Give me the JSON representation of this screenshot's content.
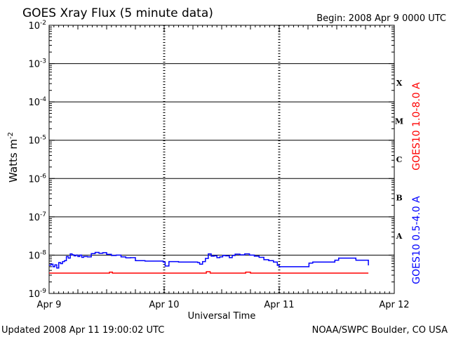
{
  "header": {
    "title": "GOES Xray Flux (5 minute data)",
    "begin": "Begin:  2008 Apr 9 0000 UTC"
  },
  "footer": {
    "updated": "Updated 2008 Apr 11 19:00:02 UTC",
    "source": "NOAA/SWPC Boulder, CO USA"
  },
  "chart_data": {
    "type": "line",
    "title": "GOES Xray Flux (5 minute data)",
    "xlabel": "Universal Time",
    "ylabel_base": "Watts m",
    "ylabel_exp": "-2",
    "scale": "log",
    "xlim": [
      0,
      72
    ],
    "ylim_exp": [
      -9,
      -2
    ],
    "x_unit": "hours since 2008 Apr 9 0000 UTC",
    "x_ticks": [
      {
        "label": "Apr 9",
        "value": 0
      },
      {
        "label": "Apr 10",
        "value": 24
      },
      {
        "label": "Apr 11",
        "value": 48
      },
      {
        "label": "Apr 12",
        "value": 72
      }
    ],
    "y_tick_exps": [
      -9,
      -8,
      -7,
      -6,
      -5,
      -4,
      -3,
      -2
    ],
    "y_tick_base": "10",
    "flare_classes": [
      {
        "label": "A",
        "exp": -7.5
      },
      {
        "label": "B",
        "exp": -6.5
      },
      {
        "label": "C",
        "exp": -5.5
      },
      {
        "label": "M",
        "exp": -4.5
      },
      {
        "label": "X",
        "exp": -3.5
      }
    ],
    "grid": "horizontal lines at each decade above 1e-8; dotted day separators",
    "legend": "right side, vertical",
    "series": [
      {
        "name": "GOES10 0.5-4.0 A",
        "color": "#0000ff",
        "points": [
          [
            0.0,
            5.5e-09
          ],
          [
            0.4,
            5.8e-09
          ],
          [
            0.8,
            5e-09
          ],
          [
            1.2,
            5.6e-09
          ],
          [
            1.6,
            4.6e-09
          ],
          [
            2.0,
            6.4e-09
          ],
          [
            2.4,
            6e-09
          ],
          [
            2.8,
            6.8e-09
          ],
          [
            3.2,
            7.2e-09
          ],
          [
            3.6,
            9.2e-09
          ],
          [
            4.0,
            8.4e-09
          ],
          [
            4.4,
            1.08e-08
          ],
          [
            4.8,
            1.02e-08
          ],
          [
            5.2,
            9.6e-09
          ],
          [
            5.6,
            1e-08
          ],
          [
            6.0,
            9.2e-09
          ],
          [
            6.4,
            1e-08
          ],
          [
            6.8,
            8.8e-09
          ],
          [
            7.2,
            9.2e-09
          ],
          [
            8.0,
            9e-09
          ],
          [
            8.8,
            1.1e-08
          ],
          [
            9.6,
            1.18e-08
          ],
          [
            10.4,
            1.12e-08
          ],
          [
            11.2,
            1.16e-08
          ],
          [
            12.0,
            1.05e-08
          ],
          [
            13.0,
            9.8e-09
          ],
          [
            14.0,
            1e-08
          ],
          [
            15.0,
            9e-09
          ],
          [
            16.0,
            8.5e-09
          ],
          [
            17.0,
            8.6e-09
          ],
          [
            18.0,
            7.2e-09
          ],
          [
            20.0,
            7e-09
          ],
          [
            22.0,
            7e-09
          ],
          [
            23.8,
            6.6e-09
          ],
          [
            24.2,
            5.2e-09
          ],
          [
            25.0,
            6.8e-09
          ],
          [
            27.0,
            6.6e-09
          ],
          [
            29.0,
            6.6e-09
          ],
          [
            31.0,
            6.4e-09
          ],
          [
            31.4,
            5.8e-09
          ],
          [
            32.0,
            6.8e-09
          ],
          [
            32.6,
            8.2e-09
          ],
          [
            33.2,
            1.08e-08
          ],
          [
            33.8,
            9.4e-09
          ],
          [
            34.4,
            9.6e-09
          ],
          [
            35.0,
            8.6e-09
          ],
          [
            35.6,
            9e-09
          ],
          [
            36.2,
            9.8e-09
          ],
          [
            36.8,
            9.6e-09
          ],
          [
            37.6,
            8.6e-09
          ],
          [
            38.2,
            9.8e-09
          ],
          [
            38.8,
            1.06e-08
          ],
          [
            39.8,
            1.02e-08
          ],
          [
            40.8,
            1.08e-08
          ],
          [
            41.8,
            1e-08
          ],
          [
            42.8,
            9.4e-09
          ],
          [
            43.8,
            8.8e-09
          ],
          [
            44.8,
            7.6e-09
          ],
          [
            45.8,
            7.2e-09
          ],
          [
            46.8,
            6.6e-09
          ],
          [
            47.6,
            5.4e-09
          ],
          [
            48.0,
            5e-09
          ],
          [
            50.0,
            5e-09
          ],
          [
            52.0,
            5e-09
          ],
          [
            53.4,
            5e-09
          ],
          [
            54.2,
            6.2e-09
          ],
          [
            55.0,
            6.6e-09
          ],
          [
            57.0,
            6.6e-09
          ],
          [
            59.0,
            6.6e-09
          ],
          [
            59.6,
            7.4e-09
          ],
          [
            60.4,
            8.4e-09
          ],
          [
            62.0,
            8.4e-09
          ],
          [
            63.4,
            8.4e-09
          ],
          [
            64.0,
            7.4e-09
          ],
          [
            65.0,
            7.4e-09
          ],
          [
            66.0,
            7.4e-09
          ],
          [
            66.6,
            5.4e-09
          ]
        ]
      },
      {
        "name": "GOES10 1.0-8.0 A",
        "color": "#ff0000",
        "points": [
          [
            0.0,
            3.4e-09
          ],
          [
            4.0,
            3.4e-09
          ],
          [
            8.0,
            3.4e-09
          ],
          [
            12.0,
            3.4e-09
          ],
          [
            12.6,
            3.6e-09
          ],
          [
            13.2,
            3.4e-09
          ],
          [
            20.0,
            3.4e-09
          ],
          [
            24.0,
            3.4e-09
          ],
          [
            32.0,
            3.4e-09
          ],
          [
            32.8,
            3.7e-09
          ],
          [
            33.6,
            3.4e-09
          ],
          [
            40.0,
            3.4e-09
          ],
          [
            41.0,
            3.6e-09
          ],
          [
            42.0,
            3.4e-09
          ],
          [
            50.0,
            3.4e-09
          ],
          [
            58.0,
            3.4e-09
          ],
          [
            66.6,
            3.4e-09
          ]
        ]
      }
    ]
  }
}
